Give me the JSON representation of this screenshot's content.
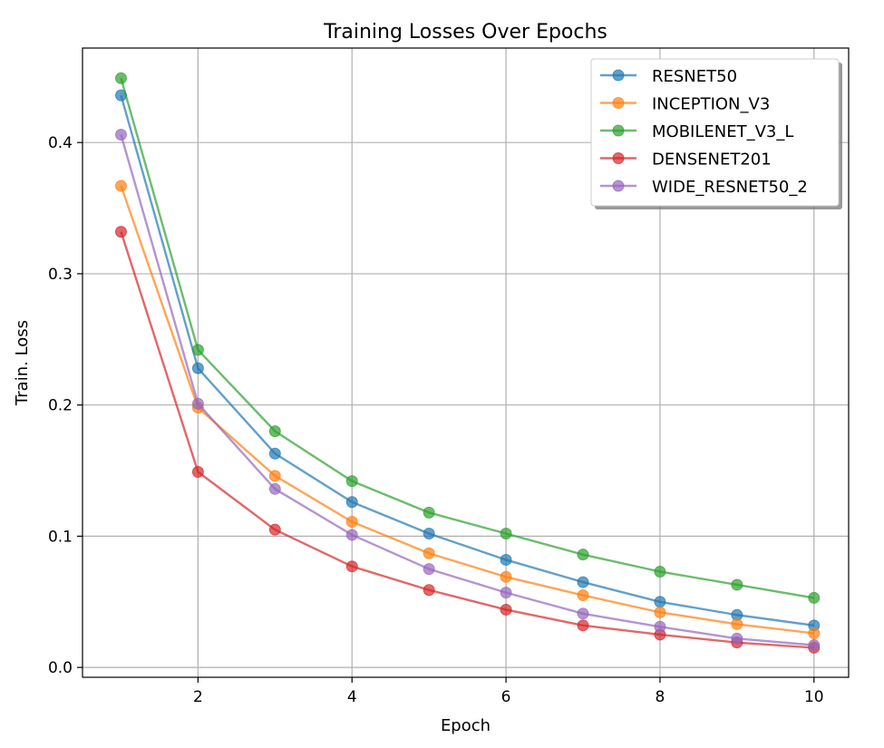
{
  "chart_data": {
    "type": "line",
    "title": "Training Losses Over Epochs",
    "xlabel": "Epoch",
    "ylabel": "Train. Loss",
    "xlim": [
      0.5,
      10.45
    ],
    "ylim": [
      -0.0075,
      0.472
    ],
    "xticks": [
      2,
      4,
      6,
      8,
      10
    ],
    "xtick_labels": [
      "2",
      "4",
      "6",
      "8",
      "10"
    ],
    "yticks": [
      0.0,
      0.1,
      0.2,
      0.3,
      0.4
    ],
    "ytick_labels": [
      "0.0",
      "0.1",
      "0.2",
      "0.3",
      "0.4"
    ],
    "grid": true,
    "legend_position": "top-right",
    "x": [
      1,
      2,
      3,
      4,
      5,
      6,
      7,
      8,
      9,
      10
    ],
    "series": [
      {
        "name": "RESNET50",
        "color": "#1f77b4",
        "values": [
          0.436,
          0.228,
          0.163,
          0.126,
          0.102,
          0.082,
          0.065,
          0.05,
          0.04,
          0.032
        ]
      },
      {
        "name": "INCEPTION_V3",
        "color": "#ff7f0e",
        "values": [
          0.367,
          0.198,
          0.146,
          0.111,
          0.087,
          0.069,
          0.055,
          0.042,
          0.033,
          0.026
        ]
      },
      {
        "name": "MOBILENET_V3_L",
        "color": "#2ca02c",
        "values": [
          0.449,
          0.242,
          0.18,
          0.142,
          0.118,
          0.102,
          0.086,
          0.073,
          0.063,
          0.053
        ]
      },
      {
        "name": "DENSENET201",
        "color": "#d62728",
        "values": [
          0.332,
          0.149,
          0.105,
          0.077,
          0.059,
          0.044,
          0.032,
          0.025,
          0.019,
          0.015
        ]
      },
      {
        "name": "WIDE_RESNET50_2",
        "color": "#9467bd",
        "values": [
          0.406,
          0.201,
          0.136,
          0.101,
          0.075,
          0.057,
          0.041,
          0.031,
          0.022,
          0.017
        ]
      }
    ]
  }
}
